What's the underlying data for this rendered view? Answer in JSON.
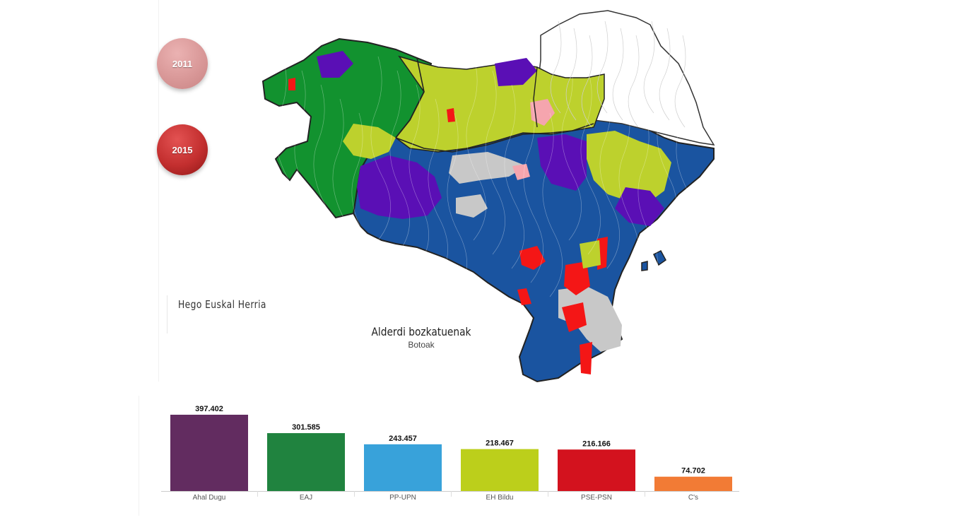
{
  "region_title": "Hego Euskal Herria",
  "map": {
    "title": "Alderdi bozkatuenak",
    "subtitle": "Botoak",
    "colors": {
      "ahal_dugu": "#5a0fb5",
      "eaj": "#12922f",
      "pp_upn": "#1a54a0",
      "eh_bildu": "#bdd12d",
      "pse_psn": "#f41616",
      "pink": "#f5a5ae",
      "no_data": "#c8c8c8",
      "iparralde": "#ffffff"
    }
  },
  "year_buttons": [
    {
      "label": "2011",
      "state": "inactive"
    },
    {
      "label": "2015",
      "state": "active"
    }
  ],
  "chart_data": {
    "type": "bar",
    "categories": [
      "Ahal Dugu",
      "EAJ",
      "PP-UPN",
      "EH Bildu",
      "PSE-PSN",
      "C's"
    ],
    "values": [
      397402,
      301585,
      243457,
      218467,
      216166,
      74702
    ],
    "value_labels": [
      "397.402",
      "301.585",
      "243.457",
      "218.467",
      "216.166",
      "74.702"
    ],
    "colors": [
      "#622c60",
      "#20833f",
      "#38a2da",
      "#bccf1b",
      "#d3121e",
      "#f27b35"
    ],
    "ylim": [
      0,
      397402
    ],
    "grid": false,
    "legend": "none"
  }
}
